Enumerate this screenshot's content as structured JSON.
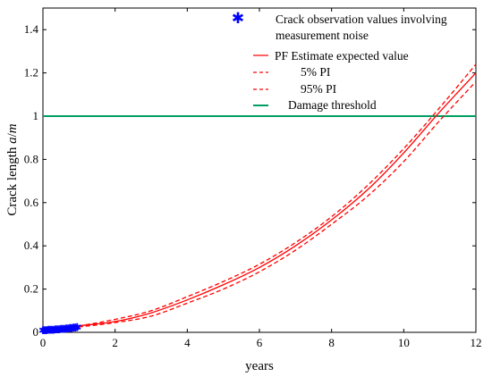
{
  "chart_data": {
    "type": "line",
    "xlabel": "years",
    "ylabel": "Crack length a/m",
    "ylabel_parts": [
      "Crack length ",
      "a",
      "/",
      "m"
    ],
    "xlim": [
      0,
      12
    ],
    "ylim": [
      0,
      1.5
    ],
    "xticks": [
      0,
      2,
      4,
      6,
      8,
      10,
      12
    ],
    "xtick_labels": [
      "0",
      "2",
      "4",
      "6",
      "8",
      "10",
      "12"
    ],
    "yticks": [
      0,
      0.2,
      0.4,
      0.6,
      0.8,
      1,
      1.2,
      1.4
    ],
    "ytick_labels": [
      "0",
      "0.2",
      "0.4",
      "0.6",
      "0.8",
      "1",
      "1.2",
      "1.4"
    ],
    "grid": false,
    "legend_position": "top-right",
    "series": [
      {
        "name": "Crack observation values involving measurement noise",
        "legend_lines": [
          "Crack observation values involving",
          "measurement noise"
        ],
        "style": "marker-star",
        "color": "#0000ff",
        "x": [
          0.0,
          0.05,
          0.1,
          0.15,
          0.2,
          0.25,
          0.3,
          0.35,
          0.4,
          0.45,
          0.5,
          0.55,
          0.6,
          0.65,
          0.7,
          0.75,
          0.8,
          0.85,
          0.9,
          0.95
        ],
        "y": [
          0.01,
          0.011,
          0.011,
          0.012,
          0.012,
          0.013,
          0.013,
          0.014,
          0.014,
          0.015,
          0.016,
          0.017,
          0.017,
          0.018,
          0.019,
          0.02,
          0.021,
          0.022,
          0.023,
          0.024
        ]
      },
      {
        "name": "PF Estimate expected value",
        "style": "solid",
        "color": "#ff0000",
        "x": [
          0,
          1,
          2,
          3,
          4,
          5,
          6,
          7,
          8,
          9,
          10,
          11,
          12
        ],
        "y": [
          0.01,
          0.03,
          0.05,
          0.09,
          0.15,
          0.22,
          0.3,
          0.4,
          0.52,
          0.66,
          0.83,
          1.02,
          1.2
        ]
      },
      {
        "name": "5% PI",
        "style": "dashed",
        "color": "#ff0000",
        "x": [
          0,
          1,
          2,
          3,
          4,
          5,
          6,
          7,
          8,
          9,
          10,
          11,
          12
        ],
        "y": [
          0.01,
          0.03,
          0.06,
          0.1,
          0.165,
          0.235,
          0.315,
          0.415,
          0.535,
          0.68,
          0.85,
          1.04,
          1.24
        ]
      },
      {
        "name": "95% PI",
        "style": "dashed",
        "color": "#ff0000",
        "x": [
          0,
          1,
          2,
          3,
          4,
          5,
          6,
          7,
          8,
          9,
          10,
          11,
          12
        ],
        "y": [
          0.01,
          0.025,
          0.045,
          0.075,
          0.135,
          0.2,
          0.28,
          0.38,
          0.5,
          0.63,
          0.79,
          0.98,
          1.16
        ]
      },
      {
        "name": "Damage threshold",
        "style": "solid",
        "color": "#009e60",
        "x": [
          0,
          12
        ],
        "y": [
          1,
          1
        ]
      }
    ]
  }
}
